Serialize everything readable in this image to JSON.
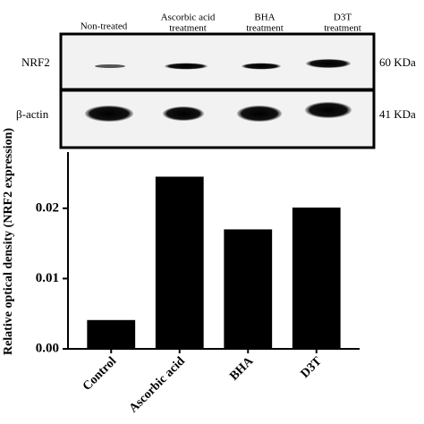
{
  "blot": {
    "lanes": [
      [
        "Non-treated"
      ],
      [
        "Ascorbic acid",
        "treatment"
      ],
      [
        "BHA",
        "treatment"
      ],
      [
        "D3T",
        "treatment"
      ]
    ],
    "rows": [
      {
        "protein": "NRF2",
        "size": "60 KDa"
      },
      {
        "protein": "β-actin",
        "size": "41 KDa"
      }
    ]
  },
  "chart_data": {
    "type": "bar",
    "y_label": "Relative optical density (NRF2 expression)",
    "categories": [
      "Control",
      "Ascorbic acid",
      "BHA",
      "D3T"
    ],
    "values": [
      0.0041,
      0.0245,
      0.017,
      0.0201
    ],
    "color": "#000000",
    "ylim": [
      0,
      0.028
    ],
    "yticks": [
      {
        "value": 0,
        "label": "0.00"
      },
      {
        "value": 0.01,
        "label": "0.01"
      },
      {
        "value": 0.02,
        "label": "0.02"
      }
    ],
    "grid": false
  }
}
